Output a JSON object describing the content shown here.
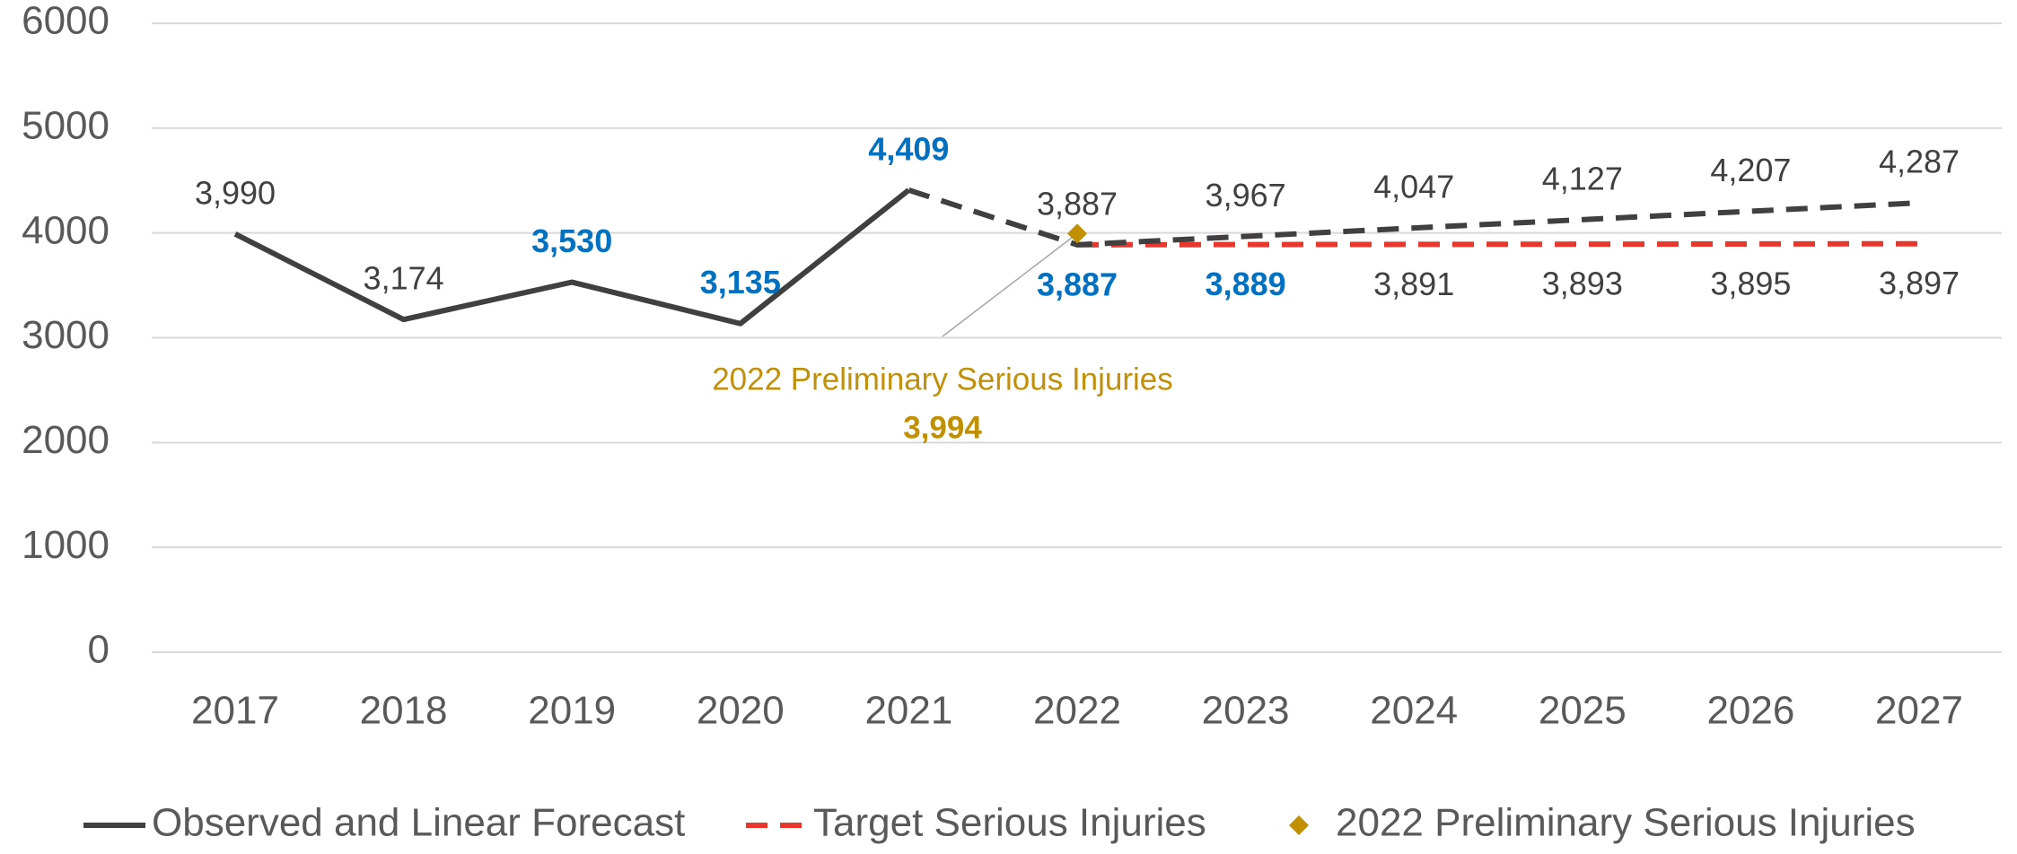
{
  "chart_data": {
    "type": "line",
    "categories": [
      "2017",
      "2018",
      "2019",
      "2020",
      "2021",
      "2022",
      "2023",
      "2024",
      "2025",
      "2026",
      "2027"
    ],
    "ylim": [
      0,
      6000
    ],
    "yticks": [
      0,
      1000,
      2000,
      3000,
      4000,
      5000,
      6000
    ],
    "grid": true,
    "legend": "bottom",
    "label_color": "#404040",
    "annotation": "2022 Preliminary Serious Injuries",
    "series": [
      {
        "name": "Observed and Linear Forecast",
        "color": "#404040",
        "dash_from": "2021",
        "values": [
          3990,
          3174,
          3530,
          3135,
          4409,
          3887,
          3967,
          4047,
          4127,
          4207,
          4287
        ],
        "value_labels": [
          "3,990",
          "3,174",
          "3,530",
          "3,135",
          "4,409",
          "3,887",
          "3,967",
          "4,047",
          "4,127",
          "4,207",
          "4,287"
        ],
        "label_colors": [
          "#404040",
          "#404040",
          "#0070c0",
          "#0070c0",
          "#0070c0",
          "#404040",
          "#404040",
          "#404040",
          "#404040",
          "#404040",
          "#404040"
        ],
        "label_position": "above"
      },
      {
        "name": "Target Serious Injuries",
        "color": "#e8382d",
        "dash_from": "2022",
        "values": [
          null,
          null,
          null,
          null,
          null,
          3887,
          3889,
          3891,
          3893,
          3895,
          3897
        ],
        "value_labels": [
          null,
          null,
          null,
          null,
          null,
          "3,887",
          "3,889",
          "3,891",
          "3,893",
          "3,895",
          "3,897"
        ],
        "label_colors": [
          null,
          null,
          null,
          null,
          null,
          "#0070c0",
          "#0070c0",
          "#404040",
          "#404040",
          "#404040",
          "#404040"
        ],
        "label_position": "below"
      },
      {
        "name": "2022 Preliminary Serious Injuries",
        "color": "#c09000",
        "marker": "diamond",
        "values": [
          null,
          null,
          null,
          null,
          null,
          3994,
          null,
          null,
          null,
          null,
          null
        ],
        "value_labels": [
          null,
          null,
          null,
          null,
          null,
          "3,994",
          null,
          null,
          null,
          null,
          null
        ],
        "label_colors": [
          null,
          null,
          null,
          null,
          null,
          "#c09000",
          null,
          null,
          null,
          null,
          null
        ],
        "label_position": "annotation"
      }
    ]
  }
}
